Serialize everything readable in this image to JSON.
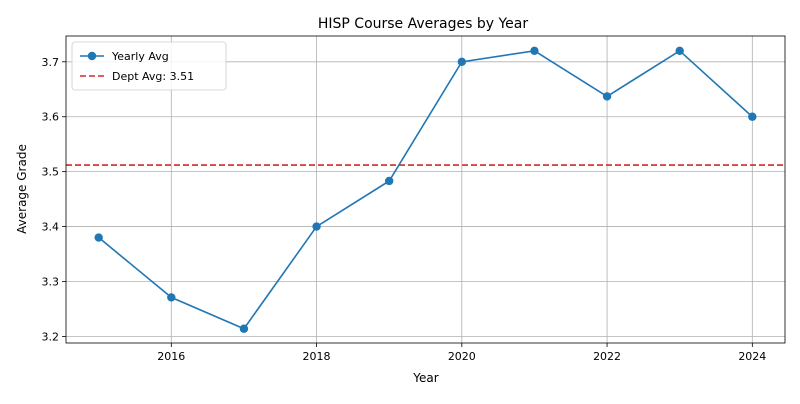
{
  "chart_data": {
    "type": "line",
    "title": "HISP Course Averages by Year",
    "xlabel": "Year",
    "ylabel": "Average Grade",
    "xlim": [
      2014.55,
      2024.45
    ],
    "ylim": [
      3.188,
      3.747
    ],
    "xticks": [
      2016,
      2018,
      2020,
      2022,
      2024
    ],
    "yticks": [
      3.2,
      3.3,
      3.4,
      3.5,
      3.6,
      3.7
    ],
    "grid": true,
    "legend_position": "top-left",
    "series": [
      {
        "name": "Yearly Avg",
        "color": "#1f77b4",
        "marker": "circle",
        "x": [
          2015,
          2016,
          2017,
          2018,
          2019,
          2020,
          2021,
          2022,
          2023,
          2024
        ],
        "y": [
          3.38,
          3.271,
          3.214,
          3.4,
          3.483,
          3.7,
          3.72,
          3.637,
          3.72,
          3.6
        ]
      }
    ],
    "reference_lines": [
      {
        "name": "Dept Avg: 3.51",
        "value": 3.512,
        "color": "#d62728",
        "style": "dashed"
      }
    ]
  }
}
